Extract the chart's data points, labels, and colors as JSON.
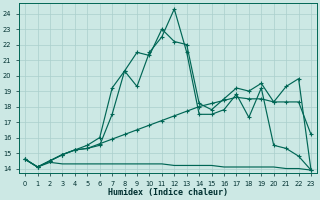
{
  "xlabel": "Humidex (Indice chaleur)",
  "bg_color": "#cce8e4",
  "grid_color": "#aacfcc",
  "line_color": "#006655",
  "xlim": [
    -0.5,
    23.5
  ],
  "ylim": [
    13.7,
    24.7
  ],
  "xticks": [
    0,
    1,
    2,
    3,
    4,
    5,
    6,
    7,
    8,
    9,
    10,
    11,
    12,
    13,
    14,
    15,
    16,
    17,
    18,
    19,
    20,
    21,
    22,
    23
  ],
  "yticks": [
    14,
    15,
    16,
    17,
    18,
    19,
    20,
    21,
    22,
    23,
    24
  ],
  "curve_top_x": [
    0,
    1,
    2,
    3,
    4,
    5,
    6,
    7,
    8,
    9,
    10,
    11,
    12,
    13,
    14,
    15,
    16,
    17,
    18,
    19,
    20,
    21,
    22,
    23
  ],
  "curve_top_y": [
    14.6,
    14.1,
    14.5,
    14.9,
    15.2,
    15.3,
    15.5,
    17.5,
    20.3,
    19.3,
    21.5,
    22.5,
    24.3,
    21.5,
    17.5,
    17.5,
    17.8,
    18.8,
    17.3,
    19.2,
    15.5,
    15.3,
    14.8,
    13.9
  ],
  "curve_mid_x": [
    0,
    1,
    2,
    3,
    4,
    5,
    6,
    7,
    8,
    9,
    10,
    11,
    12,
    13,
    14,
    15,
    16,
    17,
    18,
    19,
    20,
    21,
    22,
    23
  ],
  "curve_mid_y": [
    14.6,
    14.1,
    14.5,
    14.9,
    15.2,
    15.5,
    16.0,
    19.2,
    20.3,
    21.5,
    21.3,
    23.0,
    22.2,
    22.0,
    18.2,
    17.8,
    18.5,
    19.2,
    19.0,
    19.5,
    18.3,
    19.3,
    19.8,
    13.9
  ],
  "curve_diag_x": [
    0,
    1,
    2,
    3,
    4,
    5,
    6,
    7,
    8,
    9,
    10,
    11,
    12,
    13,
    14,
    15,
    16,
    17,
    18,
    19,
    20,
    21,
    22,
    23
  ],
  "curve_diag_y": [
    14.6,
    14.1,
    14.5,
    14.9,
    15.2,
    15.3,
    15.6,
    15.9,
    16.2,
    16.5,
    16.8,
    17.1,
    17.4,
    17.7,
    18.0,
    18.2,
    18.4,
    18.6,
    18.5,
    18.5,
    18.3,
    18.3,
    18.3,
    16.2
  ],
  "curve_flat_x": [
    0,
    1,
    2,
    3,
    4,
    5,
    6,
    7,
    8,
    9,
    10,
    11,
    12,
    13,
    14,
    15,
    16,
    17,
    18,
    19,
    20,
    21,
    22,
    23
  ],
  "curve_flat_y": [
    14.6,
    14.1,
    14.4,
    14.3,
    14.3,
    14.3,
    14.3,
    14.3,
    14.3,
    14.3,
    14.3,
    14.3,
    14.2,
    14.2,
    14.2,
    14.2,
    14.1,
    14.1,
    14.1,
    14.1,
    14.1,
    14.0,
    14.0,
    13.9
  ]
}
